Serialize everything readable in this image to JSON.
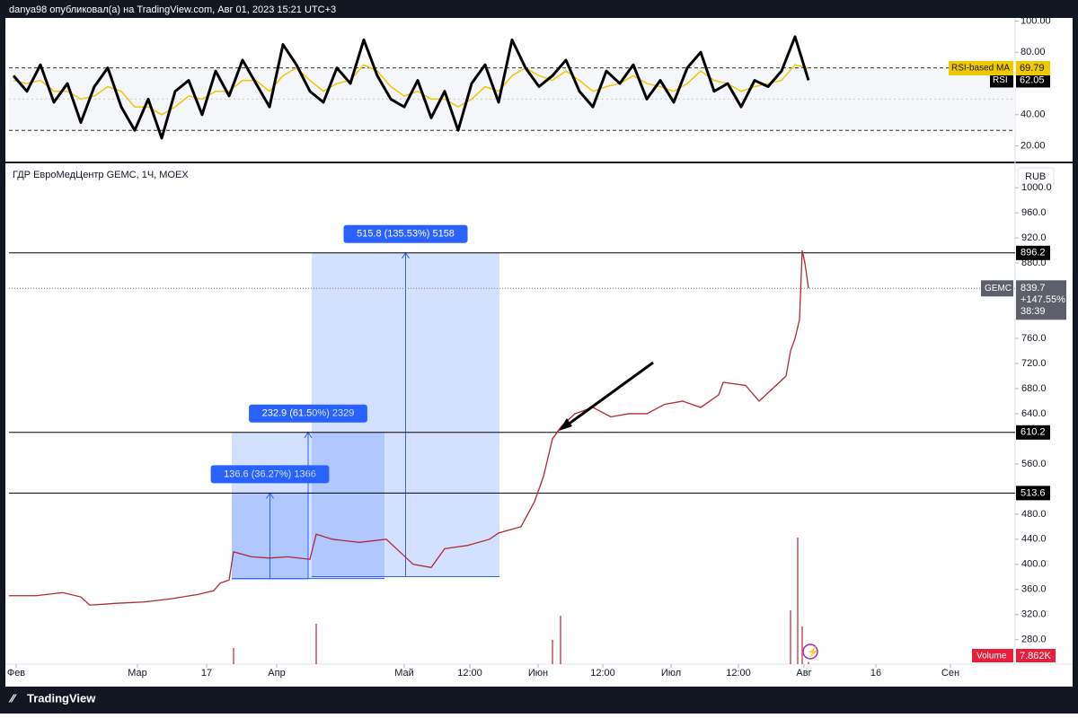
{
  "header": "danya98 опубликовал(а) на TradingView.com, Авг 01, 2023 15:21 UTC+3",
  "footer": "TradingView",
  "chart_data": [
    {
      "type": "line",
      "ylim": [
        10,
        102
      ],
      "yticks": [
        {
          "value": 20,
          "label": "20.00"
        },
        {
          "value": 40,
          "label": "40.00"
        },
        {
          "value": 80,
          "label": "80.00"
        },
        {
          "value": 100,
          "label": "100.00"
        }
      ],
      "levels": [
        70,
        50,
        30
      ],
      "xlim": [
        0,
        112
      ],
      "x": [
        0.5,
        2,
        3.5,
        5,
        6.5,
        8,
        9.5,
        11,
        12.5,
        14,
        15.5,
        17,
        18.5,
        20,
        21.5,
        23,
        24.5,
        26,
        27.5,
        29,
        30.5,
        32,
        33.5,
        35,
        36.5,
        38,
        39.5,
        41,
        42.5,
        44,
        45.5,
        47,
        48.5,
        50,
        51.5,
        53,
        54.5,
        56,
        57.5,
        59,
        60.5,
        62,
        63.5,
        65,
        66.5,
        68,
        69.5,
        71,
        72.5,
        74,
        75.5,
        77,
        78.5,
        80,
        81.5,
        83,
        84.5,
        86,
        87.5,
        89
      ],
      "series": [
        {
          "name": "RSI",
          "color": "#000000",
          "values": [
            65,
            55,
            72,
            48,
            60,
            35,
            58,
            70,
            45,
            30,
            50,
            25,
            55,
            62,
            40,
            68,
            52,
            75,
            60,
            45,
            85,
            72,
            55,
            48,
            70,
            60,
            88,
            65,
            50,
            45,
            62,
            38,
            55,
            30,
            60,
            72,
            48,
            88,
            70,
            58,
            65,
            75,
            55,
            45,
            68,
            60,
            72,
            50,
            62,
            48,
            70,
            80,
            55,
            60,
            45,
            62,
            58,
            68,
            90,
            62.05
          ]
        },
        {
          "name": "RSI-based MA",
          "color": "#f0c800",
          "values": [
            62,
            60,
            62,
            55,
            55,
            50,
            52,
            58,
            55,
            45,
            45,
            40,
            45,
            52,
            50,
            55,
            55,
            62,
            62,
            55,
            65,
            70,
            62,
            55,
            60,
            62,
            72,
            68,
            58,
            52,
            55,
            50,
            50,
            45,
            50,
            58,
            55,
            65,
            70,
            65,
            62,
            68,
            62,
            55,
            58,
            60,
            65,
            60,
            58,
            55,
            60,
            68,
            62,
            60,
            55,
            58,
            60,
            62,
            72,
            69.79
          ]
        }
      ]
    },
    {
      "type": "line",
      "title": "ГДР ЕвроМедЦентр GEMC, 1Ч, MOEX",
      "currency": "RUB",
      "ylim": [
        241,
        1006
      ],
      "yticks": [
        {
          "value": 280,
          "label": "280.0"
        },
        {
          "value": 320,
          "label": "320.0"
        },
        {
          "value": 360,
          "label": "360.0"
        },
        {
          "value": 400,
          "label": "400.0"
        },
        {
          "value": 440,
          "label": "440.0"
        },
        {
          "value": 480,
          "label": "480.0"
        },
        {
          "value": 560,
          "label": "560.0"
        },
        {
          "value": 640,
          "label": "640.0"
        },
        {
          "value": 680,
          "label": "680.0"
        },
        {
          "value": 720,
          "label": "720.0"
        },
        {
          "value": 760,
          "label": "760.0"
        },
        {
          "value": 880,
          "label": "880.0"
        },
        {
          "value": 920,
          "label": "920.0"
        },
        {
          "value": 960,
          "label": "960.0"
        },
        {
          "value": 1000,
          "label": "1000.0"
        }
      ],
      "xlim": [
        0,
        112
      ],
      "xticks": [
        {
          "value": 0.8,
          "label": "Фев"
        },
        {
          "value": 14.3,
          "label": "Мар"
        },
        {
          "value": 22,
          "label": "17"
        },
        {
          "value": 29.8,
          "label": "Апр"
        },
        {
          "value": 44,
          "label": "Май"
        },
        {
          "value": 51.3,
          "label": "12:00"
        },
        {
          "value": 58.9,
          "label": "Июн"
        },
        {
          "value": 66.1,
          "label": "12:00"
        },
        {
          "value": 73.7,
          "label": "Июл"
        },
        {
          "value": 81.2,
          "label": "12:00"
        },
        {
          "value": 88.5,
          "label": "Авг"
        },
        {
          "value": 96.5,
          "label": "16"
        },
        {
          "value": 104.8,
          "label": "Сен"
        }
      ],
      "x": [
        0,
        3,
        6,
        8,
        9,
        12,
        15,
        18,
        21,
        22.8,
        23.5,
        24.5,
        25,
        27,
        29,
        31,
        33.5,
        34.2,
        36,
        39,
        42,
        43.5,
        45,
        47,
        48.5,
        51,
        53.5,
        54.5,
        57,
        58.5,
        59.5,
        60.5,
        61.5,
        63,
        65,
        67,
        69,
        71,
        73,
        75,
        77,
        79,
        79.5,
        82,
        83.5,
        85,
        86.5,
        87,
        87.5,
        88,
        88.3,
        88.6,
        89
      ],
      "series": [
        {
          "name": "GEMC",
          "color": "#b22833",
          "values": [
            350,
            350,
            355,
            348,
            335,
            338,
            340,
            345,
            352,
            358,
            370,
            375,
            420,
            412,
            410,
            412,
            408,
            448,
            440,
            435,
            440,
            420,
            400,
            395,
            425,
            430,
            440,
            450,
            460,
            500,
            540,
            600,
            620,
            640,
            650,
            635,
            640,
            640,
            655,
            660,
            650,
            670,
            690,
            685,
            660,
            680,
            700,
            740,
            760,
            790,
            900,
            880,
            839.7
          ]
        }
      ],
      "change_label": "+147.55%",
      "countdown": "38:39",
      "levels": [
        896.2,
        610.2,
        513.6
      ],
      "measures": [
        {
          "x0": 24.8,
          "x1": 33.3,
          "y0": 377,
          "y1": 513.6,
          "label": "136.6 (36.27%) 1366"
        },
        {
          "x0": 24.8,
          "x1": 41.8,
          "y0": 377.3,
          "y1": 610.2,
          "label": "232.9 (61.50%) 2329"
        },
        {
          "x0": 33.7,
          "x1": 54.6,
          "y0": 380.4,
          "y1": 896.2,
          "label": "515.8 (135.53%) 5158"
        }
      ],
      "volume": {
        "name": "Volume",
        "ylim": [
          0,
          500000
        ],
        "x": [
          25,
          34.2,
          60.5,
          61.4,
          87,
          87.8,
          88.3,
          89
        ],
        "values": [
          60000,
          150000,
          90000,
          180000,
          200000,
          470000,
          140000,
          7862
        ],
        "value_labels": [
          "7.862K"
        ]
      }
    }
  ]
}
